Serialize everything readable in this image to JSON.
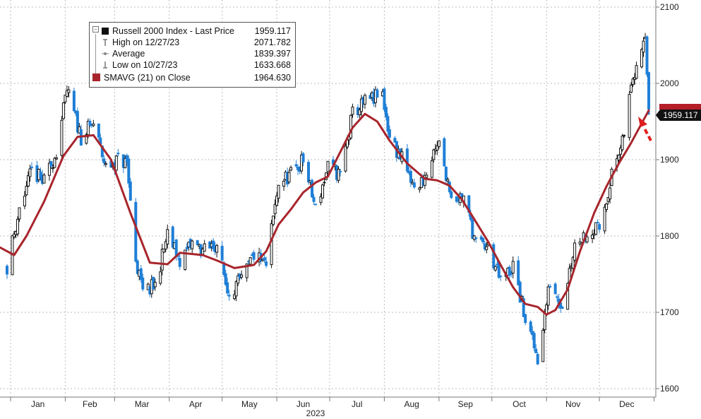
{
  "chart_data": {
    "type": "line",
    "x_title": "2023",
    "month_labels": [
      "Jan",
      "Feb",
      "Mar",
      "Apr",
      "May",
      "Jun",
      "Jul",
      "Aug",
      "Sep",
      "Oct",
      "Nov",
      "Dec"
    ],
    "month_dates": [
      "2023-01-01",
      "2023-02-01",
      "2023-03-01",
      "2023-04-01",
      "2023-05-01",
      "2023-06-01",
      "2023-07-01",
      "2023-08-01",
      "2023-09-01",
      "2023-10-01",
      "2023-11-01",
      "2023-12-01"
    ],
    "xlim": [
      "2022-12-26",
      "2024-01-02"
    ],
    "ylim": [
      1600,
      2100
    ],
    "y_ticks": [
      1600,
      1700,
      1800,
      1900,
      2000,
      2100
    ],
    "grid": true,
    "legend_position": "top-left",
    "legend": [
      {
        "label": "Russell 2000 Index - Last Price",
        "value": "1959.117",
        "marker": "black-square"
      },
      {
        "label": "High on 12/27/23",
        "value": "2071.782",
        "marker": "high-tick"
      },
      {
        "label": "Average",
        "value": "1839.397",
        "marker": "average-dot"
      },
      {
        "label": "Low on 10/27/23",
        "value": "1633.668",
        "marker": "low-tick"
      },
      {
        "label": "SMAVG (21)  on Close",
        "value": "1964.630",
        "marker": "red-square"
      }
    ],
    "last_price_label": "1959.117",
    "colors": {
      "up": "#111111",
      "down": "#1f7fd6",
      "sma": "#a8252c",
      "arrow": "#e01e1e",
      "price_tag": "#111111",
      "sma_tag": "#b41e28"
    },
    "price_series": {
      "name": "Russell 2000 Index - Last Price",
      "x": [
        "2022-12-30",
        "2023-01-06",
        "2023-01-13",
        "2023-01-20",
        "2023-01-27",
        "2023-02-02",
        "2023-02-10",
        "2023-02-17",
        "2023-02-24",
        "2023-03-03",
        "2023-03-08",
        "2023-03-13",
        "2023-03-17",
        "2023-03-24",
        "2023-03-31",
        "2023-04-07",
        "2023-04-14",
        "2023-04-21",
        "2023-04-28",
        "2023-05-04",
        "2023-05-12",
        "2023-05-19",
        "2023-05-26",
        "2023-06-02",
        "2023-06-09",
        "2023-06-16",
        "2023-06-23",
        "2023-06-30",
        "2023-07-07",
        "2023-07-14",
        "2023-07-21",
        "2023-07-31",
        "2023-08-04",
        "2023-08-11",
        "2023-08-18",
        "2023-08-25",
        "2023-09-01",
        "2023-09-08",
        "2023-09-15",
        "2023-09-22",
        "2023-09-29",
        "2023-10-06",
        "2023-10-13",
        "2023-10-20",
        "2023-10-27",
        "2023-11-03",
        "2023-11-10",
        "2023-11-17",
        "2023-11-24",
        "2023-12-01",
        "2023-12-08",
        "2023-12-14",
        "2023-12-20",
        "2023-12-27",
        "2023-12-29"
      ],
      "values": [
        1761,
        1835,
        1885,
        1870,
        1911,
        1990,
        1930,
        1947,
        1890,
        1900,
        1895,
        1770,
        1725,
        1735,
        1802,
        1768,
        1790,
        1780,
        1790,
        1728,
        1740,
        1775,
        1760,
        1870,
        1880,
        1900,
        1835,
        1890,
        1880,
        1960,
        1975,
        1985,
        1930,
        1900,
        1860,
        1880,
        1920,
        1855,
        1850,
        1790,
        1785,
        1740,
        1760,
        1690,
        1640,
        1740,
        1710,
        1790,
        1805,
        1810,
        1880,
        1920,
        2010,
        2071,
        1959
      ]
    },
    "sma_series": {
      "name": "SMAVG (21)  on Close",
      "x": [
        "2022-12-26",
        "2023-01-03",
        "2023-01-10",
        "2023-01-20",
        "2023-01-31",
        "2023-02-08",
        "2023-02-17",
        "2023-02-27",
        "2023-03-10",
        "2023-03-21",
        "2023-03-31",
        "2023-04-07",
        "2023-04-20",
        "2023-04-28",
        "2023-05-08",
        "2023-05-19",
        "2023-05-26",
        "2023-06-02",
        "2023-06-09",
        "2023-06-16",
        "2023-06-23",
        "2023-06-30",
        "2023-07-07",
        "2023-07-14",
        "2023-07-21",
        "2023-07-28",
        "2023-08-04",
        "2023-08-14",
        "2023-08-24",
        "2023-08-31",
        "2023-09-07",
        "2023-09-14",
        "2023-09-21",
        "2023-09-29",
        "2023-10-06",
        "2023-10-13",
        "2023-10-20",
        "2023-10-27",
        "2023-11-01",
        "2023-11-06",
        "2023-11-13",
        "2023-11-20",
        "2023-11-28",
        "2023-12-05",
        "2023-12-12",
        "2023-12-19",
        "2023-12-29"
      ],
      "values": [
        1785,
        1775,
        1800,
        1845,
        1905,
        1930,
        1932,
        1900,
        1830,
        1765,
        1763,
        1778,
        1775,
        1768,
        1758,
        1762,
        1780,
        1815,
        1835,
        1857,
        1870,
        1878,
        1910,
        1942,
        1960,
        1950,
        1925,
        1895,
        1875,
        1873,
        1866,
        1848,
        1822,
        1792,
        1762,
        1733,
        1711,
        1707,
        1697,
        1703,
        1730,
        1780,
        1830,
        1865,
        1895,
        1922,
        1964.6
      ]
    }
  }
}
